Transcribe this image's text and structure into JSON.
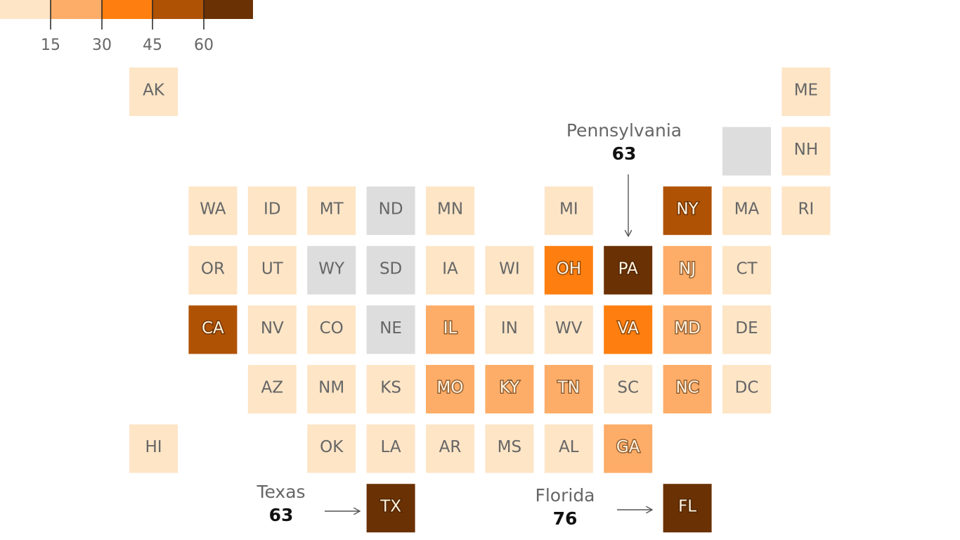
{
  "legend": {
    "colors": [
      "#fde5c6",
      "#fdad68",
      "#fe7f10",
      "#b05204",
      "#6a3104"
    ],
    "ticks": [
      15,
      30,
      45,
      60
    ]
  },
  "tiles": [
    {
      "label": "AK",
      "color": "#fde5c6"
    },
    {
      "label": "ME",
      "color": "#fde5c6"
    },
    {
      "color": "#dddddd"
    },
    {
      "label": "NH",
      "color": "#fde5c6"
    },
    {
      "label": "WA",
      "color": "#fde5c6"
    },
    {
      "label": "ID",
      "color": "#fde5c6"
    },
    {
      "label": "MT",
      "color": "#fde5c6"
    },
    {
      "label": "ND",
      "color": "#dddddd"
    },
    {
      "label": "MN",
      "color": "#fde5c6"
    },
    {
      "label": "MI",
      "color": "#fde5c6"
    },
    {
      "label": "NY",
      "color": "#b05204"
    },
    {
      "label": "MA",
      "color": "#fde5c6"
    },
    {
      "label": "RI",
      "color": "#fde5c6"
    },
    {
      "label": "OR",
      "color": "#fde5c6"
    },
    {
      "label": "UT",
      "color": "#fde5c6"
    },
    {
      "label": "WY",
      "color": "#dddddd"
    },
    {
      "label": "SD",
      "color": "#dddddd"
    },
    {
      "label": "IA",
      "color": "#fde5c6"
    },
    {
      "label": "WI",
      "color": "#fde5c6"
    },
    {
      "label": "OH",
      "color": "#fe7f10"
    },
    {
      "label": "PA",
      "color": "#6a3104"
    },
    {
      "label": "NJ",
      "color": "#fdad68"
    },
    {
      "label": "CT",
      "color": "#fde5c6"
    },
    {
      "label": "CA",
      "color": "#b05204"
    },
    {
      "label": "NV",
      "color": "#fde5c6"
    },
    {
      "label": "CO",
      "color": "#fde5c6"
    },
    {
      "label": "NE",
      "color": "#dddddd"
    },
    {
      "label": "IL",
      "color": "#fdad68"
    },
    {
      "label": "IN",
      "color": "#fde5c6"
    },
    {
      "label": "WV",
      "color": "#fde5c6"
    },
    {
      "label": "VA",
      "color": "#fe7f10"
    },
    {
      "label": "MD",
      "color": "#fdad68"
    },
    {
      "label": "DE",
      "color": "#fde5c6"
    },
    {
      "label": "AZ",
      "color": "#fde5c6"
    },
    {
      "label": "NM",
      "color": "#fde5c6"
    },
    {
      "label": "KS",
      "color": "#fde5c6"
    },
    {
      "label": "MO",
      "color": "#fdad68"
    },
    {
      "label": "KY",
      "color": "#fdad68"
    },
    {
      "label": "TN",
      "color": "#fdad68"
    },
    {
      "label": "SC",
      "color": "#fde5c6"
    },
    {
      "label": "NC",
      "color": "#fdad68"
    },
    {
      "label": "DC",
      "color": "#fde5c6"
    },
    {
      "label": "HI",
      "color": "#fde5c6"
    },
    {
      "label": "OK",
      "color": "#fde5c6"
    },
    {
      "label": "LA",
      "color": "#fde5c6"
    },
    {
      "label": "AR",
      "color": "#fde5c6"
    },
    {
      "label": "MS",
      "color": "#fde5c6"
    },
    {
      "label": "AL",
      "color": "#fde5c6"
    },
    {
      "label": "GA",
      "color": "#fdad68"
    },
    {
      "label": "TX",
      "color": "#6a3104"
    },
    {
      "label": "FL",
      "color": "#6a3104"
    }
  ],
  "annotations": [
    {
      "name": "Pennsylvania",
      "value": 63
    },
    {
      "name": "Texas",
      "value": 63
    },
    {
      "name": "Florida",
      "value": 76
    }
  ]
}
